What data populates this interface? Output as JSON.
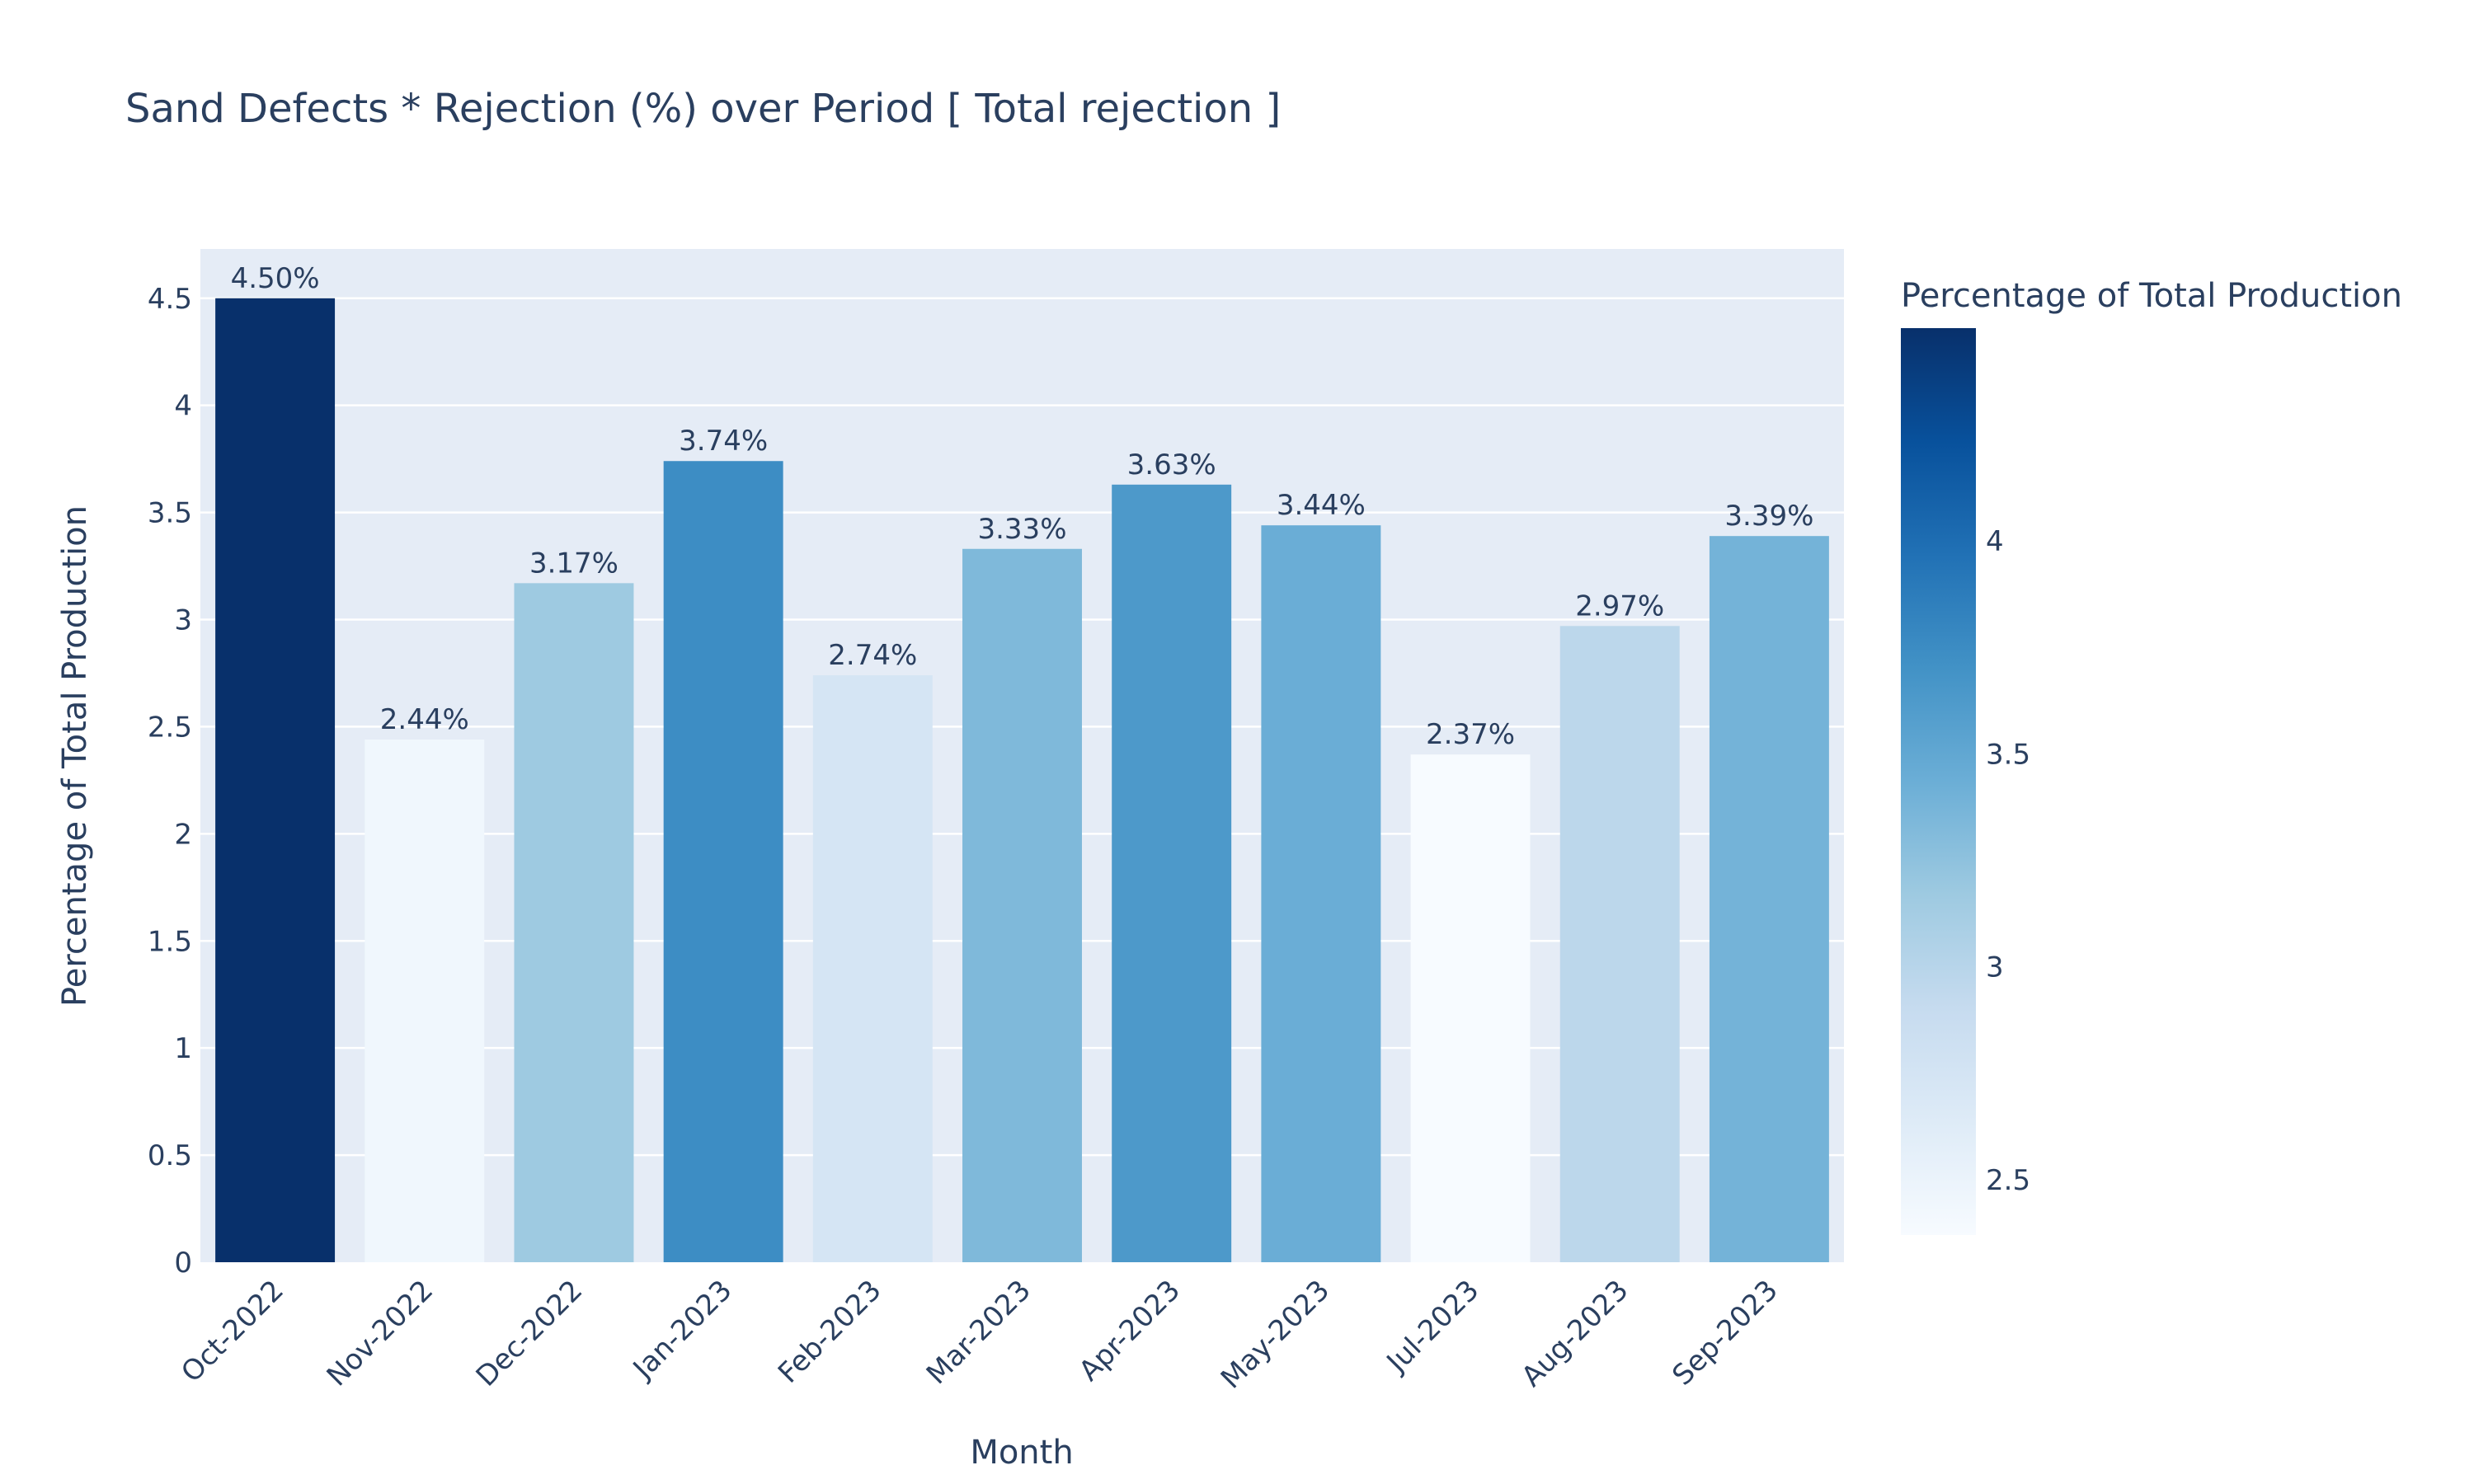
{
  "chart_data": {
    "type": "bar",
    "title": "Sand Defects * Rejection (%) over Period [ Total rejection ]",
    "xlabel": "Month",
    "ylabel": "Percentage of Total Production",
    "categories": [
      "Oct-2022",
      "Nov-2022",
      "Dec-2022",
      "Jan-2023",
      "Feb-2023",
      "Mar-2023",
      "Apr-2023",
      "May-2023",
      "Jul-2023",
      "Aug-2023",
      "Sep-2023"
    ],
    "values": [
      4.5,
      2.44,
      3.17,
      3.74,
      2.74,
      3.33,
      3.63,
      3.44,
      2.37,
      2.97,
      3.39
    ],
    "data_labels": [
      "4.50%",
      "2.44%",
      "3.17%",
      "3.74%",
      "2.74%",
      "3.33%",
      "3.63%",
      "3.44%",
      "2.37%",
      "2.97%",
      "3.39%"
    ],
    "ylim": [
      0,
      4.73
    ],
    "yticks": [
      0,
      0.5,
      1,
      1.5,
      2,
      2.5,
      3,
      3.5,
      4,
      4.5
    ],
    "ytick_labels": [
      "0",
      "0.5",
      "1",
      "1.5",
      "2",
      "2.5",
      "3",
      "3.5",
      "4",
      "4.5"
    ],
    "grid": true,
    "legend": "none",
    "colorbar": {
      "title": "Percentage of Total Production",
      "range": [
        2.37,
        4.5
      ],
      "ticks": [
        2.5,
        3,
        3.5,
        4
      ],
      "tick_labels": [
        "2.5",
        "3",
        "3.5",
        "4"
      ],
      "colorscale": "Blues",
      "placement": "right"
    },
    "colors": {
      "plot_background": "#e5ecf6",
      "gridline": "#ffffff",
      "text": "#2a3f5f"
    }
  }
}
